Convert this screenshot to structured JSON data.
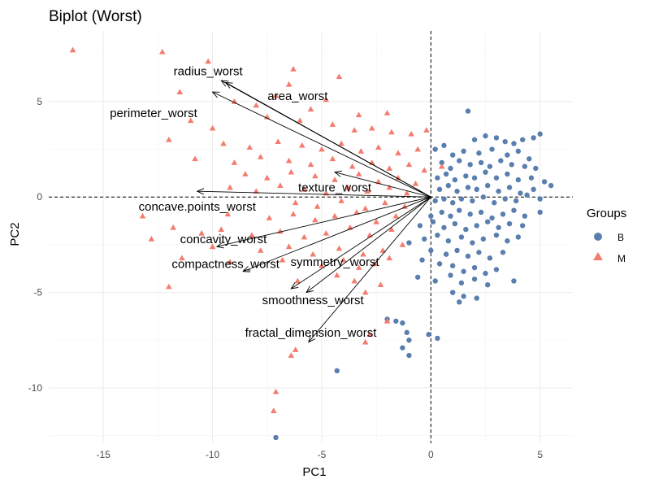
{
  "chart_data": {
    "type": "scatter",
    "title": "Biplot (Worst)",
    "xlabel": "PC1",
    "ylabel": "PC2",
    "xlim": [
      -17.5,
      6.5
    ],
    "ylim": [
      -12.9,
      8.7
    ],
    "x_ticks": [
      -15,
      -10,
      -5,
      0,
      5
    ],
    "y_ticks": [
      -10,
      -5,
      0,
      5
    ],
    "grid": true,
    "reference_lines": {
      "x": 0,
      "y": 0
    },
    "legend": {
      "title": "Groups",
      "position": "right",
      "entries": [
        {
          "label": "B",
          "shape": "circle",
          "color": "#5A7FAE"
        },
        {
          "label": "M",
          "shape": "triangle",
          "color": "#F47C6E"
        }
      ]
    },
    "series": [
      {
        "name": "B",
        "shape": "circle",
        "color": "#5A7FAE",
        "points": [
          [
            1.7,
            4.5
          ],
          [
            2.0,
            3.0
          ],
          [
            2.5,
            3.2
          ],
          [
            3.0,
            3.1
          ],
          [
            3.4,
            2.9
          ],
          [
            3.8,
            2.8
          ],
          [
            4.2,
            3.0
          ],
          [
            4.7,
            3.1
          ],
          [
            5.0,
            3.3
          ],
          [
            0.2,
            2.5
          ],
          [
            0.6,
            2.7
          ],
          [
            1.0,
            2.2
          ],
          [
            1.5,
            2.4
          ],
          [
            2.2,
            2.3
          ],
          [
            2.8,
            2.5
          ],
          [
            3.5,
            2.2
          ],
          [
            4.0,
            2.4
          ],
          [
            4.5,
            2.0
          ],
          [
            0.5,
            1.8
          ],
          [
            0.9,
            1.5
          ],
          [
            1.3,
            1.9
          ],
          [
            1.8,
            1.7
          ],
          [
            2.3,
            1.8
          ],
          [
            2.7,
            1.6
          ],
          [
            3.2,
            1.9
          ],
          [
            3.7,
            1.7
          ],
          [
            4.3,
            1.6
          ],
          [
            4.8,
            1.5
          ],
          [
            0.3,
            1.0
          ],
          [
            0.7,
            1.2
          ],
          [
            1.1,
            0.9
          ],
          [
            1.6,
            1.1
          ],
          [
            2.0,
            1.0
          ],
          [
            2.5,
            1.3
          ],
          [
            3.0,
            1.0
          ],
          [
            3.5,
            1.2
          ],
          [
            4.0,
            0.9
          ],
          [
            4.6,
            1.0
          ],
          [
            5.2,
            0.8
          ],
          [
            0.4,
            0.4
          ],
          [
            0.8,
            0.6
          ],
          [
            1.2,
            0.3
          ],
          [
            1.7,
            0.5
          ],
          [
            2.1,
            0.4
          ],
          [
            2.6,
            0.6
          ],
          [
            3.1,
            0.3
          ],
          [
            3.6,
            0.5
          ],
          [
            4.1,
            0.2
          ],
          [
            4.7,
            0.4
          ],
          [
            5.5,
            0.6
          ],
          [
            0.2,
            -0.2
          ],
          [
            0.6,
            -0.1
          ],
          [
            1.0,
            -0.3
          ],
          [
            1.4,
            -0.1
          ],
          [
            1.9,
            -0.2
          ],
          [
            2.4,
            0.0
          ],
          [
            2.9,
            -0.3
          ],
          [
            3.4,
            -0.1
          ],
          [
            3.9,
            -0.2
          ],
          [
            4.4,
            0.1
          ],
          [
            5.0,
            -0.1
          ],
          [
            0.0,
            -1.0
          ],
          [
            0.5,
            -0.8
          ],
          [
            0.9,
            -1.0
          ],
          [
            1.3,
            -0.7
          ],
          [
            1.8,
            -0.9
          ],
          [
            2.3,
            -0.8
          ],
          [
            2.8,
            -1.1
          ],
          [
            3.3,
            -0.9
          ],
          [
            3.8,
            -0.7
          ],
          [
            4.3,
            -1.0
          ],
          [
            5.0,
            -0.8
          ],
          [
            -0.5,
            -1.5
          ],
          [
            0.1,
            -1.3
          ],
          [
            0.6,
            -1.6
          ],
          [
            1.1,
            -1.4
          ],
          [
            1.6,
            -1.7
          ],
          [
            2.1,
            -1.5
          ],
          [
            2.6,
            -1.3
          ],
          [
            3.1,
            -1.6
          ],
          [
            3.6,
            -1.4
          ],
          [
            4.2,
            -1.5
          ],
          [
            -0.3,
            -2.2
          ],
          [
            0.3,
            -2.0
          ],
          [
            0.8,
            -2.3
          ],
          [
            1.4,
            -2.1
          ],
          [
            1.9,
            -2.4
          ],
          [
            2.4,
            -2.2
          ],
          [
            3.0,
            -2.0
          ],
          [
            3.5,
            -2.3
          ],
          [
            4.0,
            -2.1
          ],
          [
            -1.0,
            -2.4
          ],
          [
            0.0,
            -2.8
          ],
          [
            0.7,
            -3.0
          ],
          [
            1.2,
            -2.8
          ],
          [
            1.7,
            -3.1
          ],
          [
            2.2,
            -2.9
          ],
          [
            2.7,
            -3.2
          ],
          [
            3.3,
            -2.9
          ],
          [
            -0.4,
            -3.3
          ],
          [
            0.4,
            -3.5
          ],
          [
            1.0,
            -3.6
          ],
          [
            1.5,
            -3.9
          ],
          [
            2.0,
            -3.7
          ],
          [
            2.5,
            -4.0
          ],
          [
            3.0,
            -3.8
          ],
          [
            -0.6,
            -4.2
          ],
          [
            0.2,
            -4.4
          ],
          [
            0.9,
            -4.1
          ],
          [
            1.4,
            -4.5
          ],
          [
            2.0,
            -4.3
          ],
          [
            2.6,
            -4.6
          ],
          [
            3.8,
            -4.4
          ],
          [
            1.0,
            -5.0
          ],
          [
            1.5,
            -5.2
          ],
          [
            2.1,
            -5.3
          ],
          [
            1.3,
            -5.5
          ],
          [
            -2.0,
            -6.4
          ],
          [
            -1.6,
            -6.5
          ],
          [
            -1.3,
            -6.6
          ],
          [
            -1.1,
            -7.1
          ],
          [
            -1.0,
            -7.5
          ],
          [
            -1.3,
            -7.9
          ],
          [
            -1.0,
            -8.3
          ],
          [
            -0.1,
            -7.2
          ],
          [
            0.3,
            -7.4
          ],
          [
            -4.3,
            -9.1
          ],
          [
            -7.1,
            -12.6
          ]
        ]
      },
      {
        "name": "M",
        "shape": "triangle",
        "color": "#F47C6E",
        "points": [
          [
            -16.4,
            7.7
          ],
          [
            -12.3,
            7.6
          ],
          [
            -10.2,
            7.1
          ],
          [
            -6.3,
            6.7
          ],
          [
            -4.2,
            6.3
          ],
          [
            -6.5,
            5.9
          ],
          [
            -7.1,
            5.3
          ],
          [
            -4.8,
            5.1
          ],
          [
            -11.5,
            5.5
          ],
          [
            -9.0,
            5.0
          ],
          [
            -8.0,
            4.8
          ],
          [
            -5.5,
            4.6
          ],
          [
            -3.3,
            4.3
          ],
          [
            -2.0,
            4.4
          ],
          [
            -11.0,
            4.0
          ],
          [
            -10.0,
            3.6
          ],
          [
            -7.5,
            4.2
          ],
          [
            -6.0,
            4.0
          ],
          [
            -4.5,
            3.8
          ],
          [
            -3.5,
            3.5
          ],
          [
            -2.7,
            3.6
          ],
          [
            -1.8,
            3.4
          ],
          [
            -0.9,
            3.3
          ],
          [
            -0.2,
            3.5
          ],
          [
            -12.0,
            3.0
          ],
          [
            -9.5,
            2.8
          ],
          [
            -8.3,
            2.6
          ],
          [
            -7.0,
            2.9
          ],
          [
            -5.9,
            2.7
          ],
          [
            -5.0,
            2.5
          ],
          [
            -4.1,
            2.8
          ],
          [
            -3.2,
            2.4
          ],
          [
            -2.4,
            2.6
          ],
          [
            -1.5,
            2.3
          ],
          [
            -0.6,
            2.5
          ],
          [
            -10.8,
            2.0
          ],
          [
            -9.0,
            1.8
          ],
          [
            -7.8,
            2.1
          ],
          [
            -6.5,
            1.9
          ],
          [
            -5.5,
            1.7
          ],
          [
            -4.5,
            2.0
          ],
          [
            -3.6,
            1.6
          ],
          [
            -2.7,
            1.8
          ],
          [
            -1.9,
            1.5
          ],
          [
            -1.0,
            1.7
          ],
          [
            -0.3,
            1.4
          ],
          [
            0.5,
            1.6
          ],
          [
            -8.5,
            1.2
          ],
          [
            -7.5,
            1.0
          ],
          [
            -6.4,
            1.3
          ],
          [
            -5.3,
            1.1
          ],
          [
            -4.4,
            0.9
          ],
          [
            -3.3,
            1.2
          ],
          [
            -2.4,
            0.8
          ],
          [
            -1.5,
            1.0
          ],
          [
            -0.7,
            0.7
          ],
          [
            -9.2,
            0.5
          ],
          [
            -8.0,
            0.3
          ],
          [
            -6.9,
            0.6
          ],
          [
            -5.8,
            0.4
          ],
          [
            -4.8,
            0.2
          ],
          [
            -3.8,
            0.5
          ],
          [
            -2.9,
            0.3
          ],
          [
            -1.9,
            0.5
          ],
          [
            -1.1,
            0.2
          ],
          [
            -6.2,
            -0.3
          ],
          [
            -5.2,
            -0.5
          ],
          [
            -4.1,
            -0.2
          ],
          [
            -3.0,
            -0.6
          ],
          [
            -2.1,
            -0.3
          ],
          [
            -1.2,
            -0.5
          ],
          [
            -13.2,
            -1.0
          ],
          [
            -9.3,
            -0.9
          ],
          [
            -7.4,
            -1.1
          ],
          [
            -6.3,
            -0.9
          ],
          [
            -5.3,
            -1.2
          ],
          [
            -4.4,
            -1.0
          ],
          [
            -3.4,
            -0.8
          ],
          [
            -2.5,
            -1.3
          ],
          [
            -1.6,
            -1.0
          ],
          [
            -11.8,
            -1.6
          ],
          [
            -10.5,
            -1.9
          ],
          [
            -9.6,
            -1.7
          ],
          [
            -8.2,
            -2.0
          ],
          [
            -6.9,
            -1.8
          ],
          [
            -5.8,
            -2.1
          ],
          [
            -4.8,
            -1.9
          ],
          [
            -3.7,
            -1.6
          ],
          [
            -2.8,
            -2.0
          ],
          [
            -1.8,
            -1.7
          ],
          [
            -12.8,
            -2.2
          ],
          [
            -10.0,
            -2.6
          ],
          [
            -7.8,
            -2.8
          ],
          [
            -6.5,
            -2.6
          ],
          [
            -5.4,
            -3.0
          ],
          [
            -4.2,
            -2.7
          ],
          [
            -3.1,
            -3.0
          ],
          [
            -2.2,
            -2.8
          ],
          [
            -1.3,
            -2.5
          ],
          [
            -11.4,
            -3.2
          ],
          [
            -9.2,
            -3.4
          ],
          [
            -6.8,
            -3.3
          ],
          [
            -5.0,
            -3.6
          ],
          [
            -4.0,
            -3.3
          ],
          [
            -3.3,
            -3.7
          ],
          [
            -2.6,
            -3.5
          ],
          [
            -1.9,
            -3.2
          ],
          [
            -12.0,
            -4.7
          ],
          [
            -6.1,
            -4.4
          ],
          [
            -4.3,
            -4.1
          ],
          [
            -3.5,
            -4.4
          ],
          [
            -2.3,
            -4.6
          ],
          [
            -3.0,
            -5.0
          ],
          [
            -2.0,
            -6.5
          ],
          [
            -2.8,
            -7.2
          ],
          [
            -3.0,
            -7.6
          ],
          [
            -6.2,
            -8.0
          ],
          [
            -6.4,
            -8.3
          ],
          [
            -7.1,
            -10.2
          ],
          [
            -7.2,
            -11.2
          ]
        ]
      }
    ],
    "loadings": [
      {
        "label": "radius_worst",
        "end": [
          -9.4,
          6.0
        ],
        "label_pos": [
          -10.2,
          6.6
        ]
      },
      {
        "label": "area_worst",
        "end": [
          -9.6,
          6.1
        ],
        "label_pos": [
          -6.1,
          5.3
        ]
      },
      {
        "label": "perimeter_worst",
        "end": [
          -10.0,
          5.5
        ],
        "label_pos": [
          -12.7,
          4.4
        ]
      },
      {
        "label": "texture_worst",
        "end": [
          -4.4,
          1.3
        ],
        "label_pos": [
          -4.4,
          0.5
        ]
      },
      {
        "label": "concave.points_worst",
        "end": [
          -10.7,
          0.3
        ],
        "label_pos": [
          -10.7,
          -0.5
        ]
      },
      {
        "label": "concavity_worst",
        "end": [
          -9.8,
          -2.6
        ],
        "label_pos": [
          -9.5,
          -2.2
        ]
      },
      {
        "label": "compactness_worst",
        "end": [
          -8.6,
          -3.9
        ],
        "label_pos": [
          -9.4,
          -3.5
        ]
      },
      {
        "label": "symmetry_worst",
        "end": [
          -6.4,
          -4.8
        ],
        "label_pos": [
          -4.4,
          -3.4
        ]
      },
      {
        "label": "smoothness_worst",
        "end": [
          -5.7,
          -5.0
        ],
        "label_pos": [
          -5.4,
          -5.4
        ]
      },
      {
        "label": "fractal_dimension_worst",
        "end": [
          -5.6,
          -7.6
        ],
        "label_pos": [
          -5.5,
          -7.1
        ]
      }
    ]
  }
}
